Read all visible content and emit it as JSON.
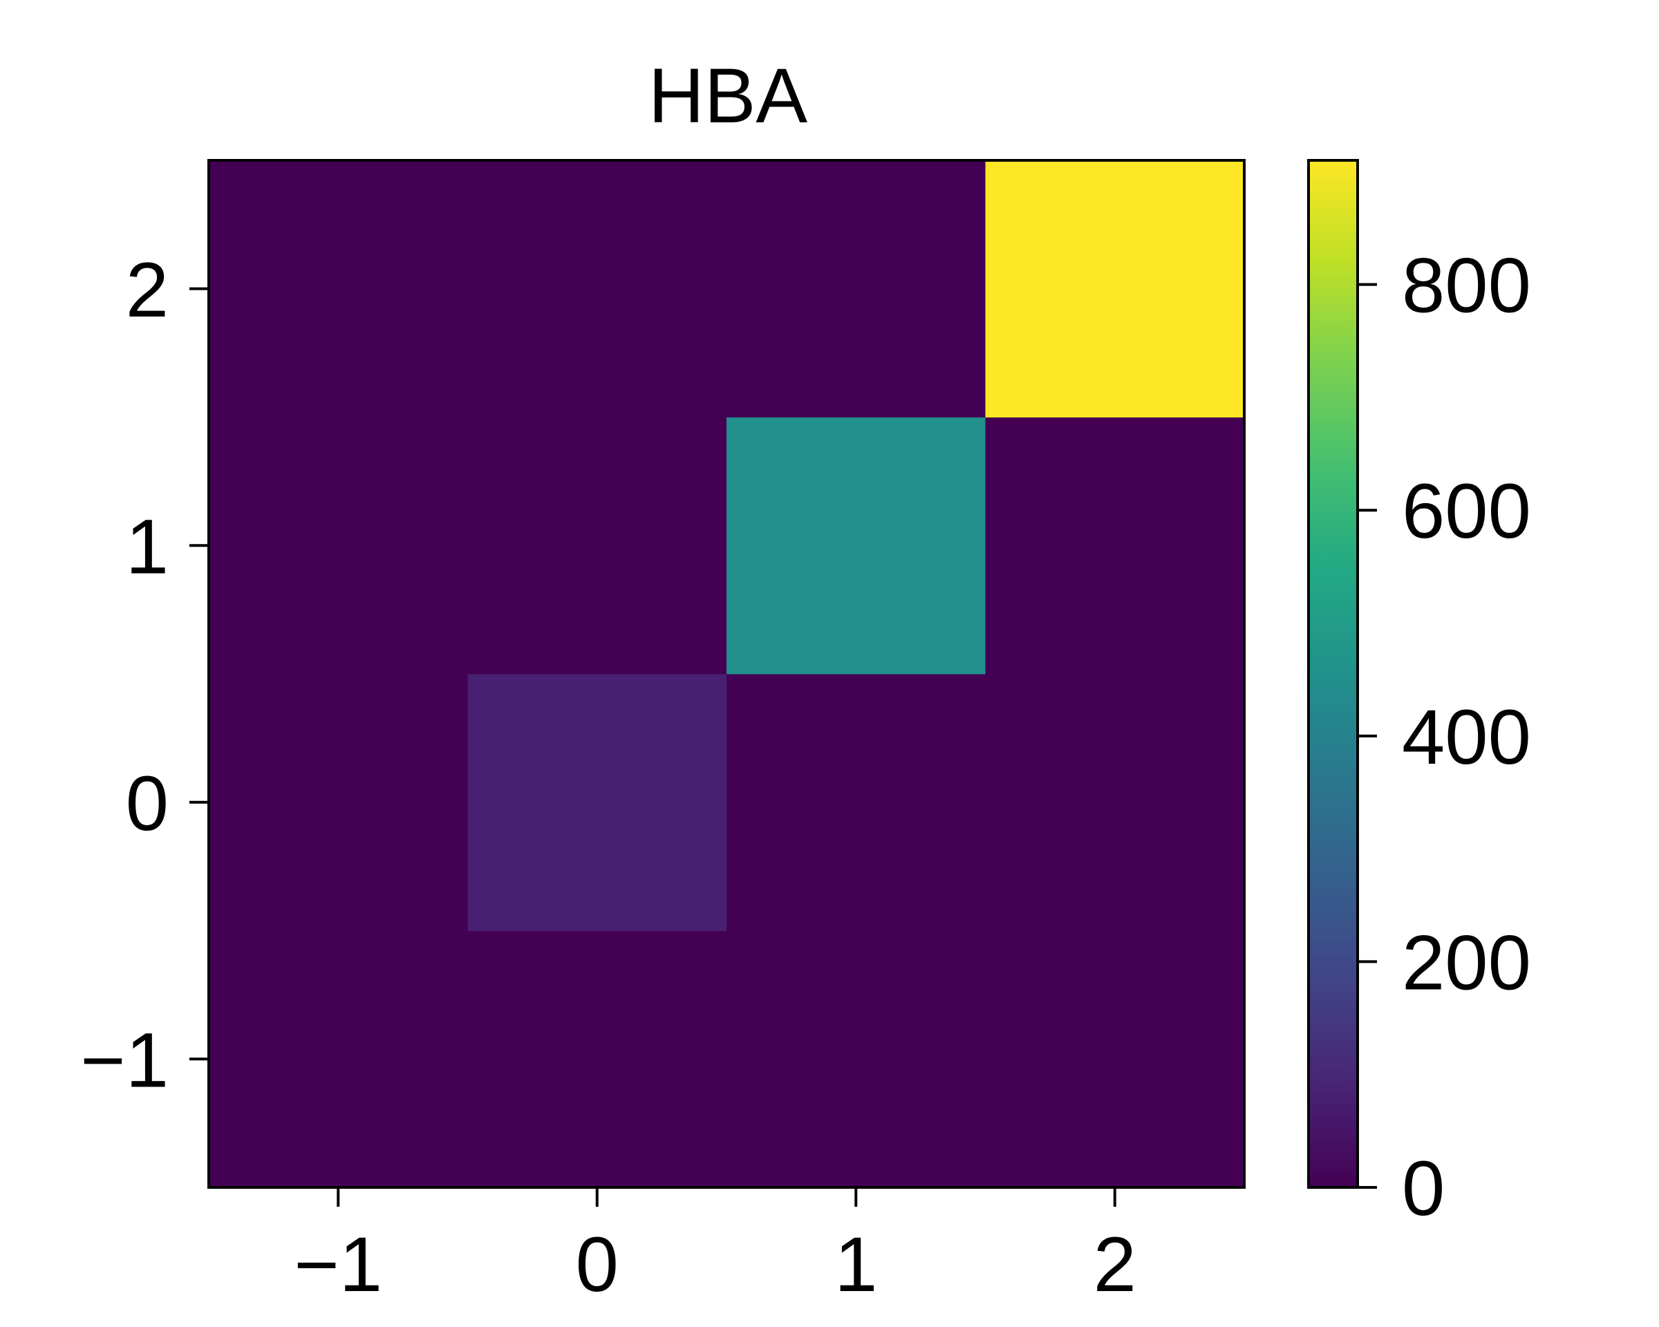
{
  "chart_data": {
    "type": "heatmap",
    "title": "HBA",
    "xlabel": "",
    "ylabel": "",
    "x": [
      -1,
      0,
      1,
      2
    ],
    "y": [
      -1,
      0,
      1,
      2
    ],
    "xlim": [
      -1.5,
      2.5
    ],
    "ylim": [
      -1.5,
      2.5
    ],
    "x_tick_labels": [
      "−1",
      "0",
      "1",
      "2"
    ],
    "y_tick_labels": [
      "−1",
      "0",
      "1",
      "2"
    ],
    "values": [
      [
        0,
        0,
        0,
        0
      ],
      [
        0,
        80,
        0,
        0
      ],
      [
        0,
        0,
        450,
        0
      ],
      [
        0,
        0,
        0,
        910
      ]
    ],
    "values_row_order": "y ascending: rows correspond to y = -1, 0, 1, 2; columns to x = -1, 0, 1, 2",
    "colormap": "viridis",
    "colorbar": {
      "min": 0,
      "max": 910,
      "ticks": [
        0,
        200,
        400,
        600,
        800
      ],
      "tick_labels": [
        "0",
        "200",
        "400",
        "600",
        "800"
      ]
    },
    "grid": false,
    "legend": "none"
  }
}
